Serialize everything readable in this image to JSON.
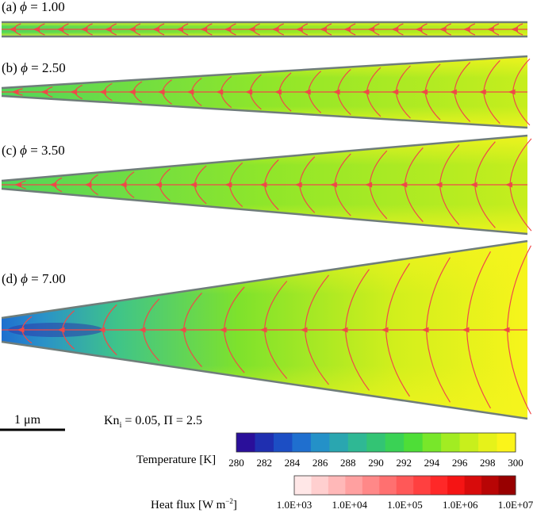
{
  "panels": [
    {
      "id": "a",
      "phi_label": "(a) ",
      "phi_value": " = 1.00",
      "phi": 1.0
    },
    {
      "id": "b",
      "phi_label": "(b) ",
      "phi_value": " = 2.50",
      "phi": 2.5
    },
    {
      "id": "c",
      "phi_label": "(c) ",
      "phi_value": " = 3.50",
      "phi": 3.5
    },
    {
      "id": "d",
      "phi_label": "(d) ",
      "phi_value": " = 7.00",
      "phi": 7.0
    }
  ],
  "phi_symbol": "ϕ",
  "scale_bar_label": "1 μm",
  "params": {
    "kn_prefix": "Kn",
    "kn_sub": "i",
    "kn_rest": " = 0.05, Π = 2.5"
  },
  "temperature_bar": {
    "title": "Temperature [K]",
    "ticks": [
      "280",
      "282",
      "284",
      "286",
      "288",
      "290",
      "292",
      "294",
      "296",
      "298",
      "300"
    ],
    "colors": [
      "#2a0f9a",
      "#1f2fb0",
      "#1c4ec4",
      "#1f6fcf",
      "#2491c8",
      "#2aa6b0",
      "#2fb894",
      "#33c474",
      "#3ad255",
      "#4ede37",
      "#78e72a",
      "#a2ec22",
      "#c8ef1c",
      "#e6f21a",
      "#fbf41a"
    ]
  },
  "heatflux_bar": {
    "title_pre": "Heat flux [W m",
    "title_sup": "−2",
    "title_post": "]",
    "ticks": [
      "1.0E+03",
      "1.0E+04",
      "1.0E+05",
      "1.0E+06",
      "1.0E+07"
    ],
    "colors": [
      "#ffe7e7",
      "#ffcfcf",
      "#ffb8b8",
      "#ffa0a0",
      "#ff8888",
      "#ff7070",
      "#ff5858",
      "#ff4040",
      "#ff2828",
      "#f51414",
      "#d80b0b",
      "#b80505",
      "#980000"
    ]
  },
  "colors": {
    "streamline": "#f04848",
    "outline": "#6f7d7a",
    "field_cool": "#3fd07a",
    "field_warm": "#f4f41e"
  }
}
